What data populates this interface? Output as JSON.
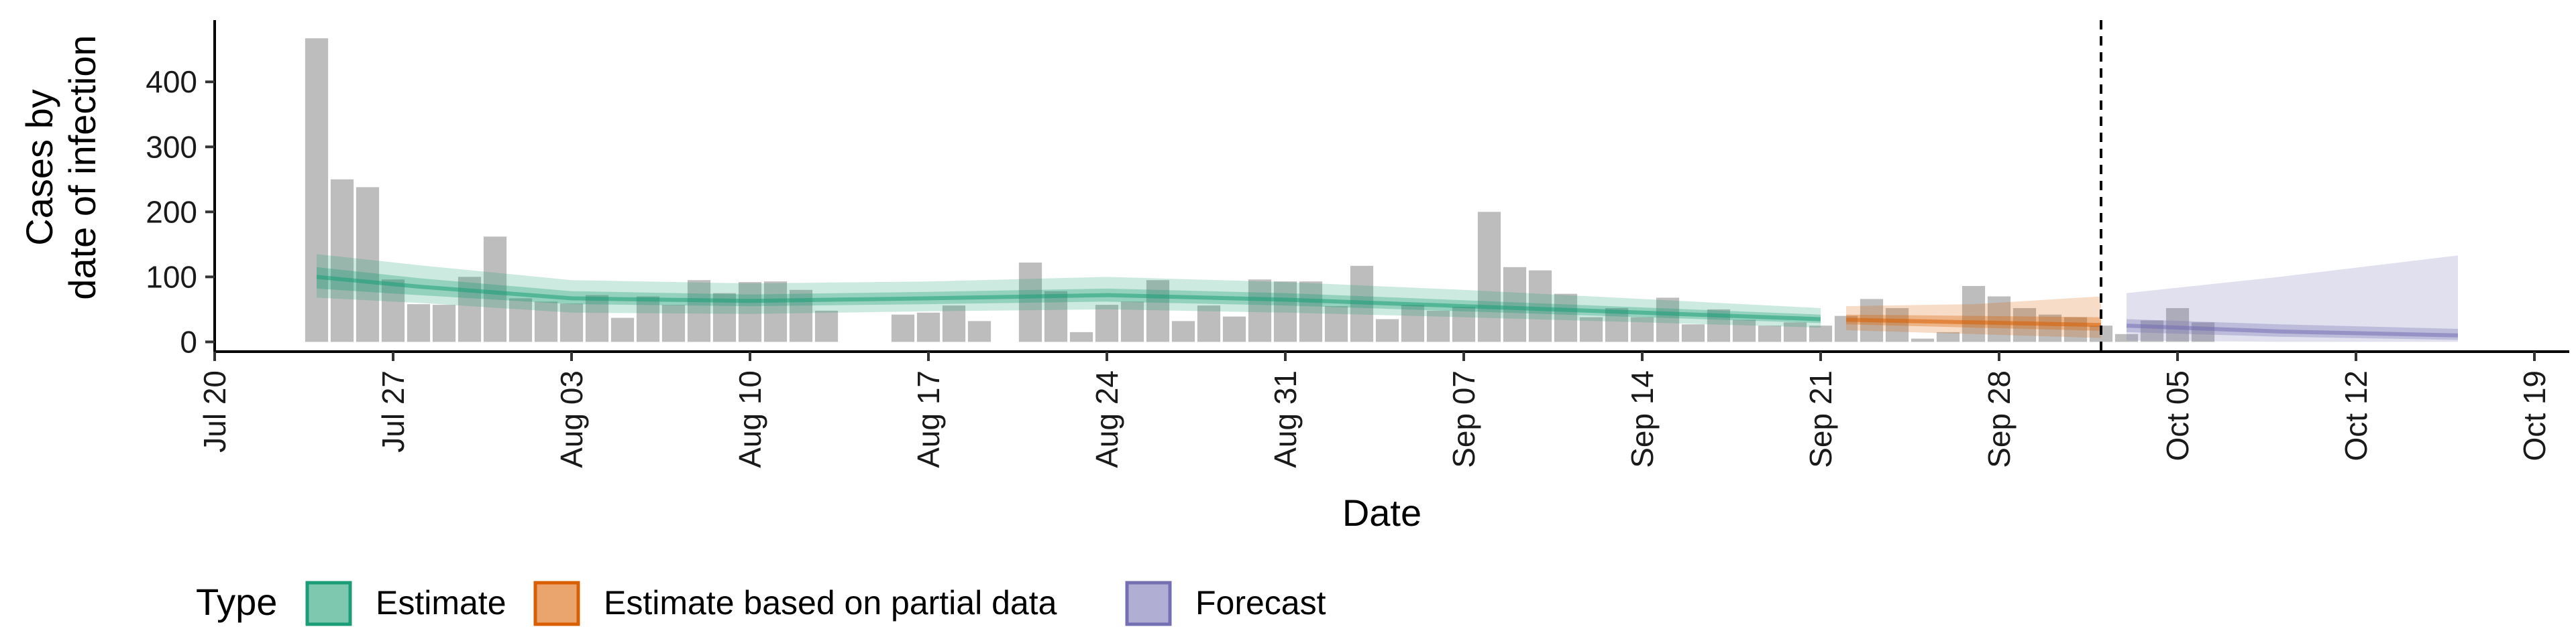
{
  "chart_data": {
    "type": "bar",
    "title": "",
    "xlabel": "Date",
    "ylabel_lines": [
      "Cases by",
      "date of infection"
    ],
    "ylim": [
      -15,
      495
    ],
    "y_ticks": [
      0,
      100,
      200,
      300,
      400
    ],
    "x_range": [
      "2020-07-20",
      "2020-10-19"
    ],
    "x_ticks": [
      {
        "date": "2020-07-20",
        "label": "Jul 20"
      },
      {
        "date": "2020-07-27",
        "label": "Jul 27"
      },
      {
        "date": "2020-08-03",
        "label": "Aug 03"
      },
      {
        "date": "2020-08-10",
        "label": "Aug 10"
      },
      {
        "date": "2020-08-17",
        "label": "Aug 17"
      },
      {
        "date": "2020-08-24",
        "label": "Aug 24"
      },
      {
        "date": "2020-08-31",
        "label": "Aug 31"
      },
      {
        "date": "2020-09-07",
        "label": "Sep 07"
      },
      {
        "date": "2020-09-14",
        "label": "Sep 14"
      },
      {
        "date": "2020-09-21",
        "label": "Sep 21"
      },
      {
        "date": "2020-09-28",
        "label": "Sep 28"
      },
      {
        "date": "2020-10-05",
        "label": "Oct 05"
      },
      {
        "date": "2020-10-12",
        "label": "Oct 12"
      },
      {
        "date": "2020-10-19",
        "label": "Oct 19"
      }
    ],
    "vline_date": "2020-10-02",
    "bar_color": "#bdbdbd",
    "bars": {
      "start_date": "2020-07-24",
      "values": [
        467,
        250,
        238,
        96,
        58,
        57,
        100,
        162,
        67,
        62,
        59,
        72,
        37,
        70,
        57,
        95,
        75,
        92,
        93,
        80,
        48,
        null,
        null,
        42,
        45,
        56,
        32,
        null,
        122,
        78,
        15,
        57,
        62,
        95,
        32,
        56,
        39,
        96,
        93,
        93,
        55,
        117,
        35,
        57,
        48,
        54,
        200,
        115,
        110,
        74,
        38,
        52,
        38,
        68,
        27,
        50,
        34,
        25,
        30,
        25,
        40,
        66,
        52,
        5,
        15,
        86,
        70,
        52,
        42,
        38,
        25,
        12,
        33,
        52,
        30
      ],
      "types": [
        "Estimate",
        "Estimate",
        "Estimate",
        "Estimate",
        "Estimate",
        "Estimate",
        "Estimate",
        "Estimate",
        "Estimate",
        "Estimate",
        "Estimate",
        "Estimate",
        "Estimate",
        "Estimate",
        "Estimate",
        "Estimate",
        "Estimate",
        "Estimate",
        "Estimate",
        "Estimate",
        "Estimate",
        "Estimate",
        "Estimate",
        "Estimate",
        "Estimate",
        "Estimate",
        "Estimate",
        "Estimate",
        "Estimate",
        "Estimate",
        "Estimate",
        "Estimate",
        "Estimate",
        "Estimate",
        "Estimate",
        "Estimate",
        "Estimate",
        "Estimate",
        "Estimate",
        "Estimate",
        "Estimate",
        "Estimate",
        "Estimate",
        "Estimate",
        "Estimate",
        "Estimate",
        "Estimate",
        "Estimate",
        "Estimate",
        "Estimate",
        "Estimate",
        "Estimate",
        "Estimate",
        "Estimate",
        "Estimate",
        "Estimate",
        "Estimate",
        "Estimate",
        "Estimate",
        "Estimate",
        "Estimate",
        "Estimate",
        "Estimate",
        "Estimate based on partial data",
        "Estimate based on partial data",
        "Estimate based on partial data",
        "Estimate based on partial data",
        "Estimate based on partial data",
        "Estimate based on partial data",
        "Estimate based on partial data",
        "Estimate based on partial data",
        "Estimate based on partial data",
        "Estimate based on partial data",
        "Estimate based on partial data",
        "Estimate based on partial data"
      ]
    },
    "series": [
      {
        "name": "Estimate",
        "color": "#1b9e77",
        "start_date": "2020-07-24",
        "end_date": "2020-09-21",
        "points": [
          {
            "date": "2020-07-24",
            "median": 100,
            "lower50": 82,
            "upper50": 115,
            "lower90": 68,
            "upper90": 135
          },
          {
            "date": "2020-07-28",
            "median": 85,
            "lower50": 72,
            "upper50": 98,
            "lower90": 60,
            "upper90": 118
          },
          {
            "date": "2020-08-03",
            "median": 67,
            "lower50": 58,
            "upper50": 78,
            "lower90": 45,
            "upper90": 95
          },
          {
            "date": "2020-08-10",
            "median": 63,
            "lower50": 55,
            "upper50": 73,
            "lower90": 43,
            "upper90": 90
          },
          {
            "date": "2020-08-17",
            "median": 67,
            "lower50": 58,
            "upper50": 77,
            "lower90": 47,
            "upper90": 93
          },
          {
            "date": "2020-08-24",
            "median": 72,
            "lower50": 62,
            "upper50": 82,
            "lower90": 50,
            "upper90": 100
          },
          {
            "date": "2020-08-31",
            "median": 65,
            "lower50": 56,
            "upper50": 75,
            "lower90": 45,
            "upper90": 92
          },
          {
            "date": "2020-09-07",
            "median": 55,
            "lower50": 47,
            "upper50": 64,
            "lower90": 38,
            "upper90": 80
          },
          {
            "date": "2020-09-14",
            "median": 45,
            "lower50": 38,
            "upper50": 53,
            "lower90": 30,
            "upper90": 66
          },
          {
            "date": "2020-09-21",
            "median": 35,
            "lower50": 29,
            "upper50": 42,
            "lower90": 22,
            "upper90": 52
          }
        ]
      },
      {
        "name": "Estimate based on partial data",
        "color": "#d95f02",
        "start_date": "2020-09-22",
        "end_date": "2020-10-02",
        "points": [
          {
            "date": "2020-09-22",
            "median": 34,
            "lower50": 27,
            "upper50": 42,
            "lower90": 18,
            "upper90": 55
          },
          {
            "date": "2020-09-27",
            "median": 30,
            "lower50": 22,
            "upper50": 40,
            "lower90": 12,
            "upper90": 58
          },
          {
            "date": "2020-10-02",
            "median": 26,
            "lower50": 17,
            "upper50": 38,
            "lower90": 6,
            "upper90": 70
          }
        ]
      },
      {
        "name": "Forecast",
        "color": "#7570b3",
        "start_date": "2020-10-03",
        "end_date": "2020-10-16",
        "points": [
          {
            "date": "2020-10-03",
            "median": 25,
            "lower50": 15,
            "upper50": 35,
            "lower90": 2,
            "upper90": 75
          },
          {
            "date": "2020-10-09",
            "median": 16,
            "lower50": 8,
            "upper50": 27,
            "lower90": 0,
            "upper90": 100
          },
          {
            "date": "2020-10-16",
            "median": 10,
            "lower50": 3,
            "upper50": 20,
            "lower90": 0,
            "upper90": 133
          }
        ]
      }
    ],
    "legend": {
      "position": "bottom",
      "title": "Type",
      "entries": [
        {
          "label": "Estimate",
          "fill": "#7fc8b0",
          "border": "#1b9e77"
        },
        {
          "label": "Estimate based on partial data",
          "fill": "#eaa56e",
          "border": "#d95f02"
        },
        {
          "label": "Forecast",
          "fill": "#b1aed4",
          "border": "#7570b3"
        }
      ]
    }
  }
}
